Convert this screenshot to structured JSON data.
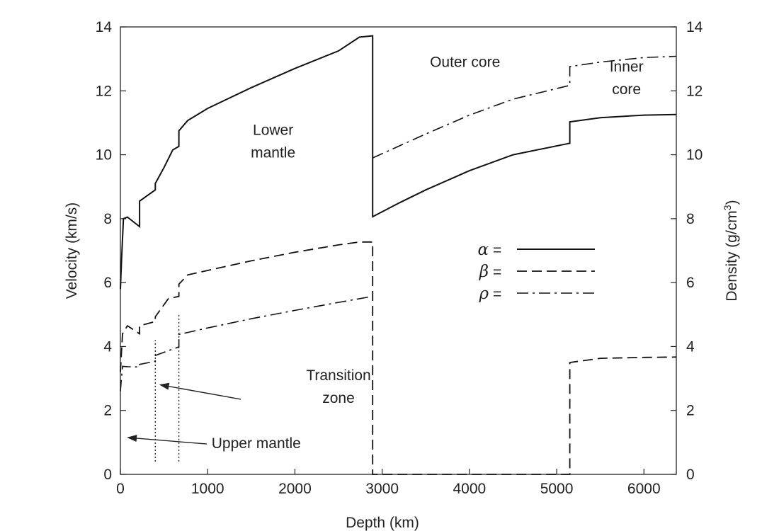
{
  "chart_data": {
    "type": "line",
    "xlabel": "Depth (km)",
    "ylabel": "Velocity (km/s)",
    "y2label_main": "Density (g/cm",
    "y2label_sup": "3",
    "y2label_close": ")",
    "xlim": [
      0,
      6371
    ],
    "ylim": [
      0,
      14
    ],
    "y2lim": [
      0,
      14
    ],
    "x_ticks": [
      0,
      1000,
      2000,
      3000,
      4000,
      5000,
      6000
    ],
    "y_ticks": [
      0,
      2,
      4,
      6,
      8,
      10,
      12,
      14
    ],
    "y2_ticks": [
      0,
      2,
      4,
      6,
      8,
      10,
      12,
      14
    ],
    "grid": false,
    "legend": {
      "placement": "right-middle",
      "entries": [
        {
          "symbol": "α",
          "eq": "=",
          "series": "alpha",
          "dash": "solid"
        },
        {
          "symbol": "β",
          "eq": "=",
          "series": "beta",
          "dash": "dashed"
        },
        {
          "symbol": "ρ",
          "eq": "=",
          "series": "rho",
          "dash": "dashdot"
        }
      ]
    },
    "series": [
      {
        "id": "alpha",
        "dash": "solid",
        "segments": [
          [
            [
              0,
              5.8
            ],
            [
              15,
              6.8
            ],
            [
              35,
              8.0
            ],
            [
              80,
              8.05
            ],
            [
              220,
              7.75
            ],
            [
              220,
              8.55
            ],
            [
              400,
              8.9
            ],
            [
              400,
              9.1
            ],
            [
              500,
              9.6
            ],
            [
              600,
              10.15
            ],
            [
              670,
              10.26
            ],
            [
              670,
              10.75
            ],
            [
              771,
              11.07
            ],
            [
              1000,
              11.45
            ],
            [
              1500,
              12.1
            ],
            [
              2000,
              12.7
            ],
            [
              2500,
              13.25
            ],
            [
              2740,
              13.68
            ],
            [
              2891,
              13.72
            ],
            [
              2891,
              8.06
            ],
            [
              3200,
              8.5
            ],
            [
              3500,
              8.9
            ],
            [
              4000,
              9.5
            ],
            [
              4500,
              10.0
            ],
            [
              5150,
              10.36
            ],
            [
              5150,
              11.03
            ],
            [
              5500,
              11.16
            ],
            [
              6000,
              11.24
            ],
            [
              6371,
              11.26
            ]
          ]
        ]
      },
      {
        "id": "beta",
        "dash": "dashed",
        "segments": [
          [
            [
              0,
              3.2
            ],
            [
              24,
              4.4
            ],
            [
              80,
              4.65
            ],
            [
              220,
              4.4
            ],
            [
              220,
              4.65
            ],
            [
              400,
              4.78
            ],
            [
              400,
              4.93
            ],
            [
              550,
              5.5
            ],
            [
              670,
              5.57
            ],
            [
              670,
              5.95
            ],
            [
              771,
              6.24
            ],
            [
              1000,
              6.38
            ],
            [
              1500,
              6.68
            ],
            [
              2000,
              6.95
            ],
            [
              2500,
              7.18
            ],
            [
              2740,
              7.27
            ],
            [
              2891,
              7.27
            ],
            [
              2891,
              0.0
            ],
            [
              5150,
              0.0
            ],
            [
              5150,
              3.5
            ],
            [
              5500,
              3.63
            ],
            [
              6000,
              3.66
            ],
            [
              6371,
              3.67
            ]
          ]
        ]
      },
      {
        "id": "rho",
        "dash": "dashdot",
        "segments": [
          [
            [
              0,
              2.6
            ],
            [
              24,
              3.38
            ],
            [
              80,
              3.37
            ],
            [
              220,
              3.36
            ],
            [
              220,
              3.44
            ],
            [
              400,
              3.54
            ],
            [
              400,
              3.72
            ],
            [
              670,
              3.99
            ],
            [
              670,
              4.38
            ],
            [
              771,
              4.44
            ],
            [
              1000,
              4.58
            ],
            [
              1500,
              4.87
            ],
            [
              2000,
              5.13
            ],
            [
              2500,
              5.38
            ],
            [
              2891,
              5.57
            ]
          ],
          [
            [
              2891,
              9.9
            ],
            [
              3500,
              10.65
            ],
            [
              4000,
              11.24
            ],
            [
              4500,
              11.74
            ],
            [
              5150,
              12.17
            ],
            [
              5150,
              12.76
            ],
            [
              5500,
              12.9
            ],
            [
              6000,
              13.04
            ],
            [
              6371,
              13.08
            ]
          ]
        ]
      },
      {
        "id": "boundaries",
        "dash": "dotted",
        "segments": [
          [
            [
              400,
              0.4
            ],
            [
              400,
              4.2
            ]
          ],
          [
            [
              670,
              0.4
            ],
            [
              670,
              5.0
            ]
          ]
        ]
      }
    ],
    "annotations": [
      {
        "id": "lower-mantle",
        "lines": [
          "Lower",
          "mantle"
        ],
        "x": 1750,
        "y": 10.62,
        "anchor": "middle"
      },
      {
        "id": "outer-core",
        "lines": [
          "Outer core"
        ],
        "x": 3950,
        "y": 12.75,
        "anchor": "middle"
      },
      {
        "id": "inner-core",
        "lines": [
          "Inner",
          "core"
        ],
        "x": 5800,
        "y": 12.6,
        "anchor": "middle"
      },
      {
        "id": "transition-zone",
        "lines": [
          "Transition",
          "zone"
        ],
        "x": 2500,
        "y": 2.95,
        "anchor": "middle",
        "arrow_to": [
          460,
          2.8
        ],
        "arrow_from": [
          1380,
          2.35
        ]
      },
      {
        "id": "upper-mantle",
        "lines": [
          "Upper mantle"
        ],
        "x": 1045,
        "y": 0.82,
        "anchor": "start",
        "arrow_to": [
          90,
          1.15
        ],
        "arrow_from": [
          990,
          0.95
        ]
      }
    ]
  }
}
